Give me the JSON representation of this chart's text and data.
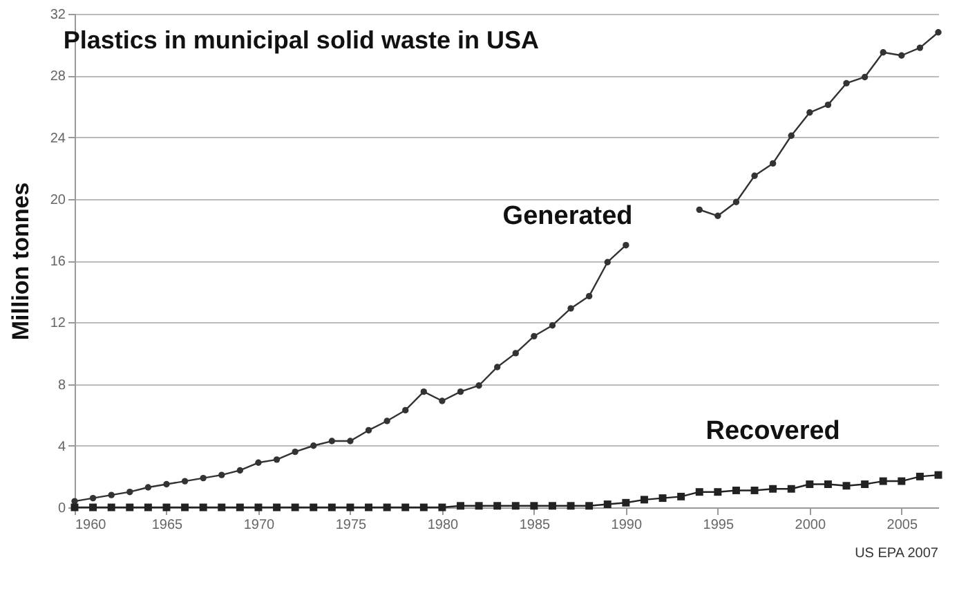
{
  "chart_data": {
    "type": "line",
    "title": "Plastics in municipal solid waste in USA",
    "ylabel": "Million tonnes",
    "x": [
      1960,
      1961,
      1962,
      1963,
      1964,
      1965,
      1966,
      1967,
      1968,
      1969,
      1970,
      1971,
      1972,
      1973,
      1974,
      1975,
      1976,
      1977,
      1978,
      1979,
      1980,
      1981,
      1982,
      1983,
      1984,
      1985,
      1986,
      1987,
      1988,
      1989,
      1990,
      1991,
      1992,
      1993,
      1994,
      1995,
      1996,
      1997,
      1998,
      1999,
      2000,
      2001,
      2002,
      2003,
      2004,
      2005,
      2006,
      2007
    ],
    "series": [
      {
        "name": "Generated",
        "color": "#333333",
        "marker": "circle",
        "values": [
          0.4,
          0.6,
          0.8,
          1.0,
          1.3,
          1.5,
          1.7,
          1.9,
          2.1,
          2.4,
          2.9,
          3.1,
          3.6,
          4.0,
          4.3,
          4.3,
          5.0,
          5.6,
          6.3,
          7.5,
          6.9,
          7.5,
          7.9,
          9.1,
          10.0,
          11.1,
          11.8,
          12.9,
          13.7,
          15.9,
          17.0,
          null,
          null,
          null,
          19.3,
          18.9,
          19.8,
          21.5,
          22.3,
          24.1,
          25.6,
          26.1,
          27.5,
          27.9,
          29.5,
          29.3,
          29.8,
          30.8
        ]
      },
      {
        "name": "Recovered",
        "color": "#222222",
        "marker": "square",
        "values": [
          0,
          0,
          0,
          0,
          0,
          0,
          0,
          0,
          0,
          0,
          0,
          0,
          0,
          0,
          0,
          0,
          0,
          0,
          0,
          0,
          0,
          0.1,
          0.1,
          0.1,
          0.1,
          0.1,
          0.1,
          0.1,
          0.1,
          0.2,
          0.3,
          0.5,
          0.6,
          0.7,
          1.0,
          1.0,
          1.1,
          1.1,
          1.2,
          1.2,
          1.5,
          1.5,
          1.4,
          1.5,
          1.7,
          1.7,
          2.0,
          2.1
        ]
      }
    ],
    "xlim": [
      1960,
      2007
    ],
    "xticks": [
      1960,
      1965,
      1970,
      1975,
      1980,
      1985,
      1990,
      1995,
      2000,
      2005
    ],
    "ylim": [
      0,
      32
    ],
    "yticks": [
      0,
      4,
      8,
      12,
      16,
      20,
      24,
      28,
      32
    ],
    "grid": "y",
    "annotations": [
      "US EPA 2007"
    ]
  }
}
